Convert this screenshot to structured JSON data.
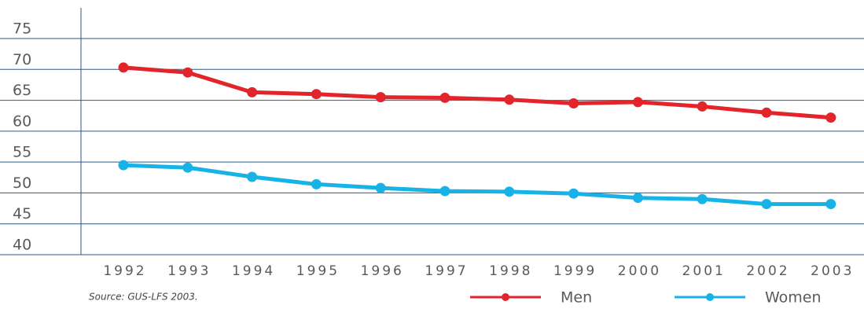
{
  "chart_data": {
    "type": "line",
    "categories": [
      "1992",
      "1993",
      "1994",
      "1995",
      "1996",
      "1997",
      "1998",
      "1999",
      "2000",
      "2001",
      "2002",
      "2003"
    ],
    "series": [
      {
        "name": "Men",
        "color": "#e2242b",
        "values": [
          70.3,
          69.5,
          66.3,
          66.0,
          65.5,
          65.4,
          65.1,
          64.5,
          64.7,
          64.0,
          63.0,
          62.2
        ]
      },
      {
        "name": "Women",
        "color": "#17b2e6",
        "values": [
          54.5,
          54.1,
          52.6,
          51.4,
          50.8,
          50.3,
          50.2,
          49.9,
          49.2,
          49.0,
          48.2,
          48.2
        ]
      }
    ],
    "ylim": [
      40,
      80
    ],
    "yticks": [
      40,
      45,
      50,
      55,
      60,
      65,
      70,
      75
    ],
    "grid": true,
    "source": "Source: GUS-LFS 2003.",
    "legend": "bottom-right"
  }
}
